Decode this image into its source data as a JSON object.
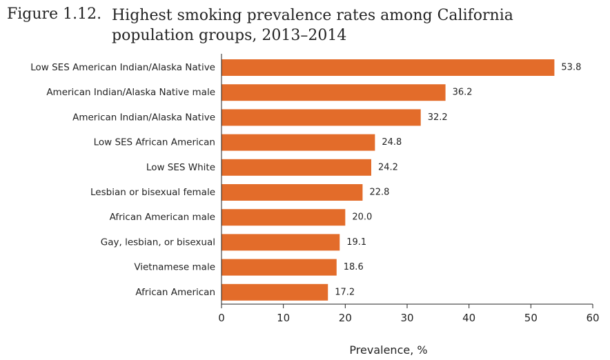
{
  "figure": {
    "number": "Figure 1.12.",
    "title": "Highest smoking prevalence rates among California population groups, 2013–2014"
  },
  "chart_data": {
    "type": "bar",
    "orientation": "horizontal",
    "categories": [
      "Low SES American Indian/Alaska Native",
      "American Indian/Alaska Native male",
      "American Indian/Alaska Native",
      "Low SES African American",
      "Low SES White",
      "Lesbian or bisexual female",
      "African American male",
      "Gay, lesbian, or bisexual",
      "Vietnamese male",
      "African American"
    ],
    "values": [
      53.8,
      36.2,
      32.2,
      24.8,
      24.2,
      22.8,
      20.0,
      19.1,
      18.6,
      17.2
    ],
    "value_labels": [
      "53.8",
      "36.2",
      "32.2",
      "24.8",
      "24.2",
      "22.8",
      "20.0",
      "19.1",
      "18.6",
      "17.2"
    ],
    "xlabel": "Prevalence, %",
    "ylabel": "",
    "xlim": [
      0,
      60
    ],
    "xticks": [
      0,
      10,
      20,
      30,
      40,
      50,
      60
    ],
    "grid": false,
    "bar_color": "#E36C2A",
    "axis_color": "#222222"
  }
}
